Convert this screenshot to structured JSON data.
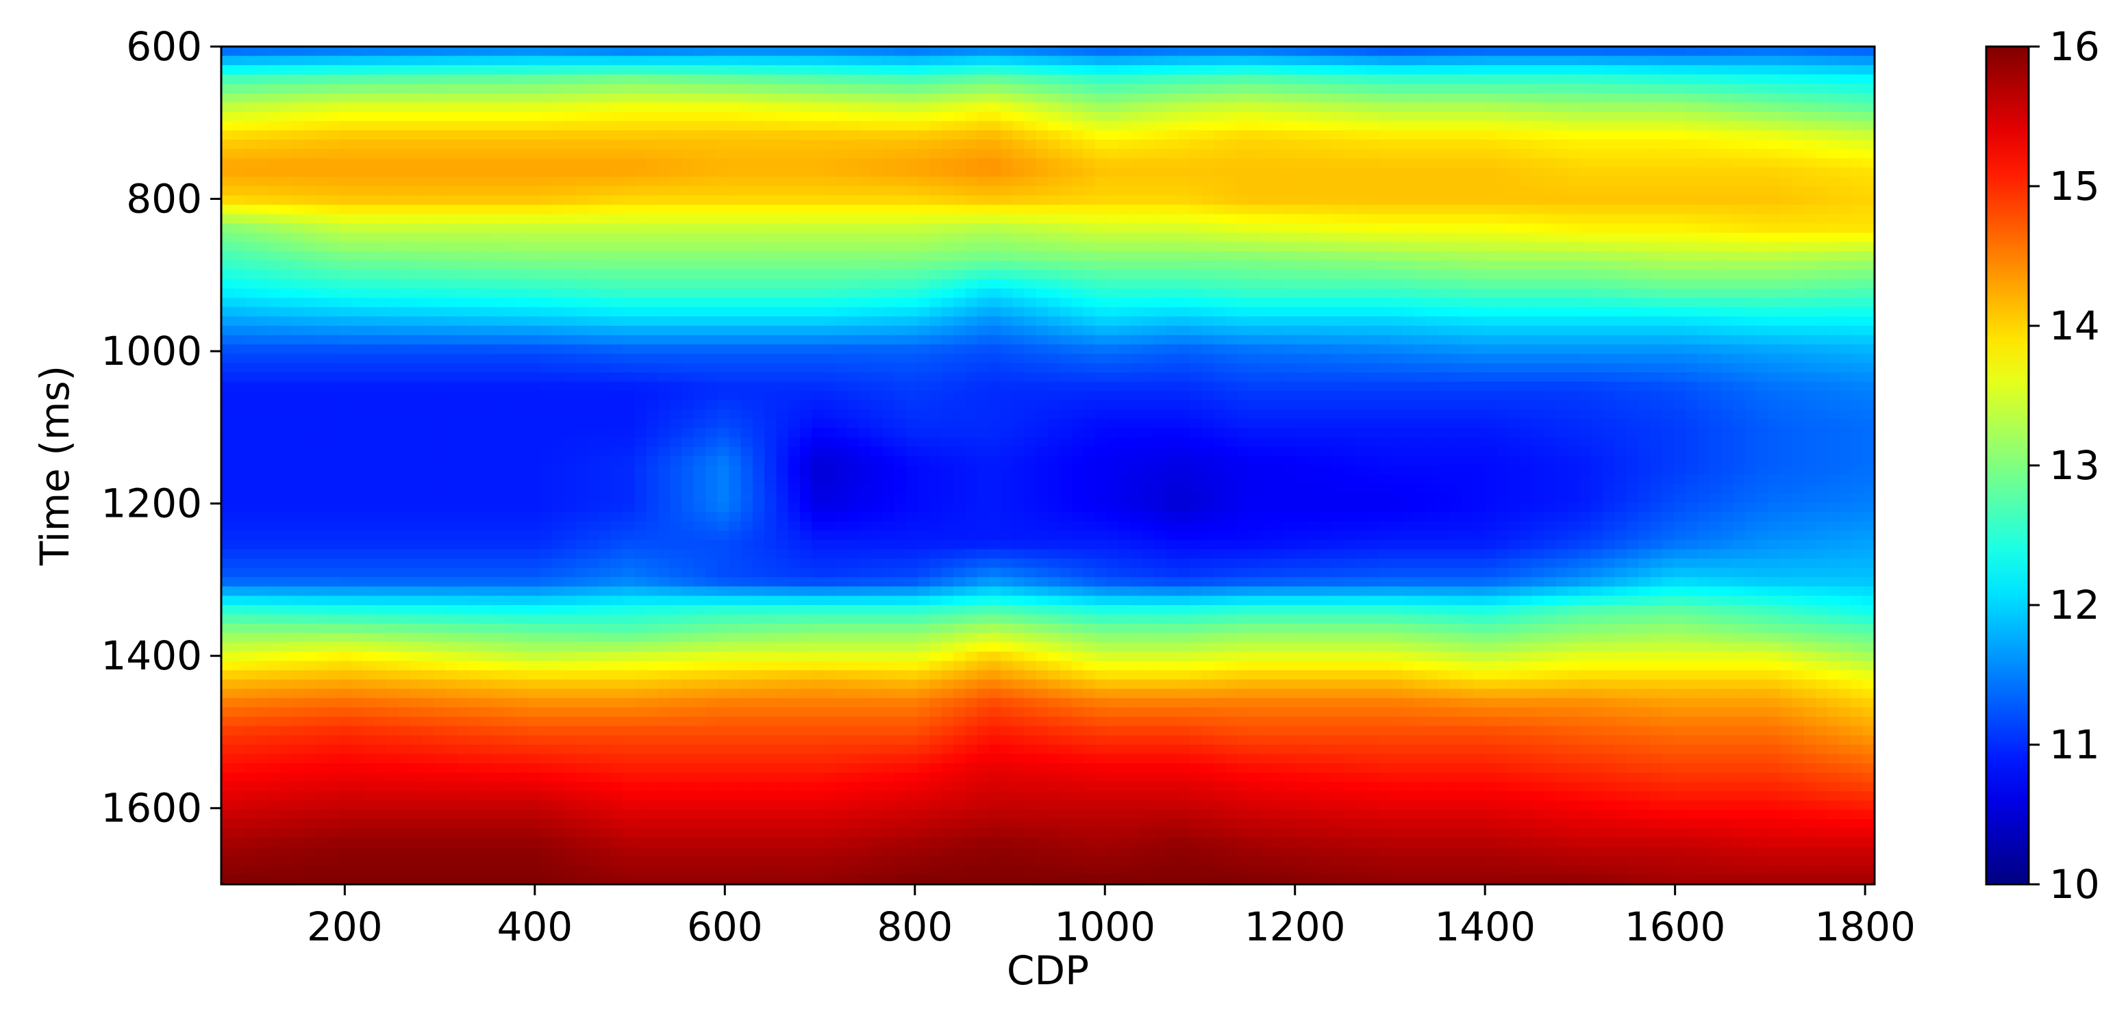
{
  "chart_data": {
    "type": "heatmap",
    "title": "",
    "xlabel": "CDP",
    "ylabel": "Time (ms)",
    "xlim": [
      70,
      1810
    ],
    "ylim": [
      600,
      1700
    ],
    "y_inverted": true,
    "x_ticks": [
      200,
      400,
      600,
      800,
      1000,
      1200,
      1400,
      1600,
      1800
    ],
    "x_tick_labels": [
      "200",
      "400",
      "600",
      "800",
      "1000",
      "1200",
      "1400",
      "1600",
      "1800"
    ],
    "y_ticks": [
      600,
      800,
      1000,
      1200,
      1400,
      1600
    ],
    "y_tick_labels": [
      "600",
      "800",
      "1000",
      "1200",
      "1400",
      "1600"
    ],
    "colorbar": {
      "range": [
        10,
        16
      ],
      "ticks": [
        10,
        11,
        12,
        13,
        14,
        15,
        16
      ],
      "tick_labels": [
        "10",
        "11",
        "12",
        "13",
        "14",
        "15",
        "16"
      ],
      "colormap": "jet",
      "colormap_colors": [
        "#00007f",
        "#0000ff",
        "#007fff",
        "#00ffff",
        "#7fff7f",
        "#ffff00",
        "#ff7f00",
        "#ff0000",
        "#7f0000"
      ]
    },
    "grid": false,
    "cdp_positions": [
      70,
      200,
      400,
      500,
      600,
      700,
      800,
      880,
      1000,
      1080,
      1150,
      1300,
      1400,
      1500,
      1600,
      1700,
      1810
    ],
    "time_samples": [
      600,
      640,
      680,
      720,
      760,
      800,
      840,
      880,
      920,
      960,
      1000,
      1050,
      1100,
      1150,
      1200,
      1250,
      1300,
      1340,
      1370,
      1400,
      1430,
      1460,
      1500,
      1550,
      1600,
      1650,
      1700
    ],
    "values": [
      [
        11.2,
        11.3,
        11.4,
        11.3,
        11.4,
        11.4,
        11.3,
        11.4,
        11.2,
        11.3,
        11.3,
        11.1,
        11.2,
        11.2,
        11.2,
        11.3,
        11.2
      ],
      [
        12.6,
        12.7,
        12.8,
        12.9,
        12.8,
        12.7,
        12.6,
        12.8,
        12.5,
        12.6,
        12.7,
        12.5,
        12.5,
        12.5,
        12.4,
        12.3,
        12.2
      ],
      [
        13.4,
        13.6,
        13.6,
        13.7,
        13.7,
        13.6,
        13.5,
        13.7,
        13.2,
        13.4,
        13.5,
        13.3,
        13.3,
        13.2,
        13.2,
        13.0,
        12.8
      ],
      [
        14.0,
        14.1,
        14.1,
        14.1,
        14.1,
        14.1,
        14.1,
        14.2,
        13.8,
        13.9,
        14.0,
        13.9,
        13.9,
        13.8,
        13.8,
        13.7,
        13.5
      ],
      [
        14.3,
        14.3,
        14.3,
        14.3,
        14.2,
        14.2,
        14.3,
        14.4,
        14.1,
        14.1,
        14.1,
        14.1,
        14.1,
        14.0,
        14.0,
        14.0,
        13.9
      ],
      [
        14.0,
        14.1,
        14.1,
        14.0,
        14.0,
        14.0,
        14.0,
        14.1,
        14.0,
        14.0,
        14.1,
        14.1,
        14.1,
        14.1,
        14.1,
        14.1,
        14.0
      ],
      [
        13.0,
        13.4,
        13.4,
        13.4,
        13.4,
        13.4,
        13.4,
        13.3,
        13.5,
        13.5,
        13.6,
        13.7,
        13.7,
        13.8,
        13.8,
        13.9,
        13.9
      ],
      [
        12.6,
        12.9,
        13.0,
        13.0,
        13.0,
        13.0,
        13.0,
        12.9,
        13.0,
        13.0,
        13.0,
        13.1,
        13.2,
        13.2,
        13.3,
        13.3,
        13.2
      ],
      [
        12.2,
        12.4,
        12.5,
        12.6,
        12.6,
        12.6,
        12.5,
        12.1,
        12.5,
        12.5,
        12.6,
        12.6,
        12.7,
        12.7,
        12.8,
        12.8,
        12.7
      ],
      [
        11.7,
        11.8,
        11.9,
        12.0,
        12.0,
        12.0,
        11.9,
        11.6,
        12.0,
        11.9,
        12.0,
        12.0,
        12.1,
        12.1,
        12.1,
        12.2,
        12.2
      ],
      [
        11.2,
        11.2,
        11.2,
        11.3,
        11.3,
        11.3,
        11.3,
        11.2,
        11.4,
        11.3,
        11.4,
        11.5,
        11.6,
        11.6,
        11.6,
        11.7,
        11.8
      ],
      [
        10.9,
        10.9,
        10.9,
        10.9,
        11.0,
        11.0,
        11.1,
        11.0,
        11.0,
        11.0,
        11.1,
        11.1,
        11.1,
        11.1,
        11.2,
        11.4,
        11.5
      ],
      [
        10.9,
        10.9,
        10.9,
        10.9,
        11.2,
        10.8,
        11.0,
        11.0,
        10.8,
        10.8,
        10.9,
        10.9,
        10.9,
        11.0,
        11.1,
        11.3,
        11.4
      ],
      [
        10.9,
        10.9,
        10.9,
        11.0,
        11.5,
        10.5,
        10.8,
        10.9,
        10.7,
        10.6,
        10.7,
        10.8,
        10.8,
        10.9,
        11.1,
        11.3,
        11.4
      ],
      [
        10.9,
        10.9,
        10.9,
        11.0,
        11.5,
        10.6,
        10.8,
        10.9,
        10.7,
        10.5,
        10.7,
        10.7,
        10.8,
        10.9,
        11.2,
        11.4,
        11.5
      ],
      [
        11.0,
        11.0,
        11.0,
        11.2,
        11.2,
        10.9,
        10.9,
        10.9,
        10.9,
        10.8,
        10.8,
        10.9,
        10.9,
        11.1,
        11.4,
        11.6,
        11.7
      ],
      [
        11.3,
        11.3,
        11.3,
        11.5,
        11.2,
        11.1,
        11.2,
        11.6,
        11.2,
        11.1,
        11.2,
        11.3,
        11.3,
        11.6,
        12.0,
        11.9,
        11.9
      ],
      [
        12.5,
        12.4,
        12.3,
        12.4,
        12.5,
        12.5,
        12.5,
        12.7,
        12.4,
        12.4,
        12.5,
        12.5,
        12.4,
        12.7,
        12.8,
        12.6,
        12.3
      ],
      [
        13.1,
        13.1,
        12.9,
        12.8,
        13.0,
        13.1,
        13.1,
        13.4,
        13.0,
        13.0,
        13.1,
        13.1,
        12.9,
        13.1,
        13.2,
        13.0,
        12.8
      ],
      [
        13.6,
        13.8,
        13.4,
        13.5,
        13.6,
        13.6,
        13.6,
        14.0,
        13.5,
        13.5,
        13.6,
        13.6,
        13.4,
        13.6,
        13.6,
        13.6,
        13.2
      ],
      [
        14.1,
        14.2,
        14.0,
        14.0,
        14.1,
        14.2,
        14.1,
        14.4,
        14.0,
        14.0,
        14.1,
        14.1,
        13.9,
        14.0,
        14.0,
        14.0,
        13.7
      ],
      [
        14.5,
        14.6,
        14.4,
        14.4,
        14.5,
        14.5,
        14.5,
        14.8,
        14.5,
        14.5,
        14.5,
        14.5,
        14.4,
        14.4,
        14.3,
        14.3,
        14.0
      ],
      [
        14.9,
        15.0,
        14.8,
        14.8,
        14.8,
        14.8,
        14.8,
        15.1,
        14.9,
        14.9,
        14.8,
        14.8,
        14.8,
        14.7,
        14.6,
        14.6,
        14.3
      ],
      [
        15.2,
        15.3,
        15.2,
        15.1,
        15.1,
        15.1,
        15.2,
        15.4,
        15.3,
        15.3,
        15.2,
        15.1,
        15.1,
        15.0,
        14.9,
        14.9,
        14.7
      ],
      [
        15.5,
        15.6,
        15.6,
        15.4,
        15.4,
        15.4,
        15.5,
        15.6,
        15.6,
        15.6,
        15.5,
        15.4,
        15.4,
        15.3,
        15.2,
        15.2,
        15.1
      ],
      [
        15.8,
        15.9,
        15.9,
        15.7,
        15.7,
        15.7,
        15.8,
        15.9,
        15.8,
        15.9,
        15.8,
        15.7,
        15.7,
        15.6,
        15.6,
        15.5,
        15.5
      ],
      [
        16.0,
        16.0,
        16.0,
        15.9,
        15.9,
        15.9,
        16.0,
        16.0,
        16.0,
        16.0,
        16.0,
        15.9,
        15.9,
        15.9,
        15.8,
        15.8,
        15.8
      ]
    ]
  }
}
